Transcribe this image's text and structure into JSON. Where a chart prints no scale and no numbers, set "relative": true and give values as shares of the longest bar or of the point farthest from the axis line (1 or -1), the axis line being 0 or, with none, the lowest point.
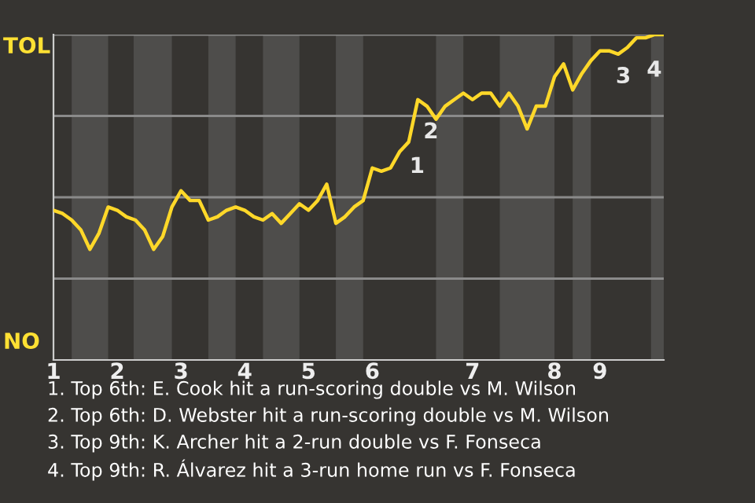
{
  "chart_data": {
    "type": "line",
    "color": "#ffd829",
    "legend": false,
    "marker": "none",
    "line_style": "solid",
    "relative": true,
    "categories": [
      "1",
      null,
      null,
      null,
      null,
      null,
      null,
      "2",
      null,
      null,
      null,
      null,
      null,
      null,
      "3",
      null,
      null,
      null,
      null,
      null,
      null,
      "4",
      null,
      null,
      null,
      null,
      null,
      null,
      "5",
      null,
      null,
      null,
      null,
      null,
      null,
      "6",
      null,
      null,
      null,
      null,
      null,
      null,
      null,
      null,
      null,
      null,
      "7",
      null,
      null,
      null,
      null,
      null,
      null,
      null,
      null,
      "8",
      null,
      null,
      null,
      null,
      "9",
      null,
      null,
      null,
      null,
      null,
      null,
      null
    ],
    "ref_lines": [
      {
        "axis": "y",
        "value": 0.25,
        "color": "#8a8a8a"
      },
      {
        "axis": "y",
        "value": 0.5,
        "color": "#8a8a8a"
      },
      {
        "axis": "y",
        "value": 0.75,
        "color": "#8a8a8a"
      },
      {
        "axis": "y",
        "value": 1,
        "color": "#8a8a8a"
      }
    ],
    "values": [
      0.46,
      0.45,
      0.43,
      0.4,
      0.34,
      0.39,
      0.47,
      0.46,
      0.44,
      0.43,
      0.4,
      0.34,
      0.38,
      0.47,
      0.52,
      0.49,
      0.49,
      0.43,
      0.44,
      0.46,
      0.47,
      0.46,
      0.44,
      0.43,
      0.45,
      0.42,
      0.45,
      0.48,
      0.46,
      0.49,
      0.54,
      0.42,
      0.44,
      0.47,
      0.49,
      0.59,
      0.58,
      0.59,
      0.64,
      0.67,
      0.8,
      0.78,
      0.74,
      0.78,
      0.8,
      0.82,
      0.8,
      0.82,
      0.82,
      0.78,
      0.82,
      0.78,
      0.71,
      0.78,
      0.78,
      0.87,
      0.91,
      0.83,
      0.88,
      0.92,
      0.95,
      0.95,
      0.94,
      0.96,
      0.99,
      0.99,
      1.0,
      1.0
    ],
    "annotations": [
      "TOL",
      "NO",
      "1",
      "2",
      "3",
      "4",
      "1. Top 6th: E. Cook hit a run-scoring double vs M. Wilson",
      "2. Top 6th: D. Webster hit a run-scoring double vs M. Wilson",
      "3. Top 9th: K. Archer hit a 2-run double vs F. Fonseca",
      "4. Top 9th: R. Álvarez hit a 3-run home run vs F. Fonseca"
    ]
  }
}
